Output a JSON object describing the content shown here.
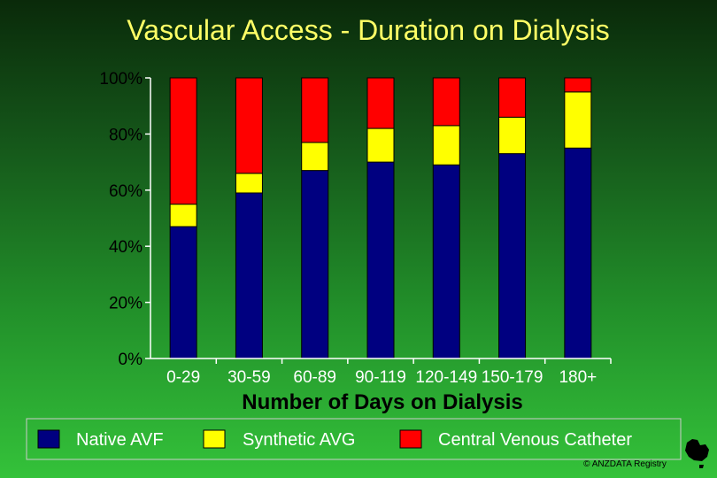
{
  "chart_data": {
    "type": "bar",
    "stacked": true,
    "title": "Vascular Access - Duration on Dialysis",
    "xlabel": "Number of Days on Dialysis",
    "ylabel": "",
    "ylim": [
      0,
      100
    ],
    "yticks": [
      "0%",
      "20%",
      "40%",
      "60%",
      "80%",
      "100%"
    ],
    "categories": [
      "0-29",
      "30-59",
      "60-89",
      "90-119",
      "120-149",
      "150-179",
      "180+"
    ],
    "series": [
      {
        "name": "Native AVF",
        "color": "#000080",
        "values": [
          47,
          59,
          67,
          70,
          69,
          73,
          75
        ]
      },
      {
        "name": "Synthetic AVG",
        "color": "#ffff00",
        "values": [
          8,
          7,
          10,
          12,
          14,
          13,
          20
        ]
      },
      {
        "name": "Central Venous Catheter",
        "color": "#ff0000",
        "values": [
          45,
          34,
          23,
          18,
          17,
          14,
          5
        ]
      }
    ],
    "legend_position": "bottom",
    "credit": "© ANZDATA Registry"
  }
}
